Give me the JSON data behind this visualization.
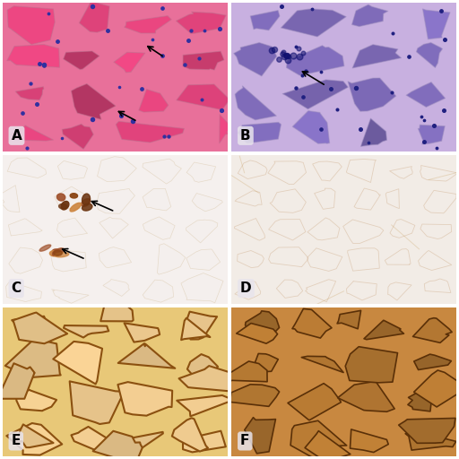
{
  "figsize": [
    5.12,
    5.12
  ],
  "dpi": 100,
  "background_color": "#ffffff",
  "border_color": "#ffffff",
  "panels": [
    {
      "label": "A",
      "row": 0,
      "col": 0,
      "type": "HE_pink"
    },
    {
      "label": "B",
      "row": 0,
      "col": 1,
      "type": "HE_purple"
    },
    {
      "label": "C",
      "row": 1,
      "col": 0,
      "type": "MAC_stain"
    },
    {
      "label": "D",
      "row": 1,
      "col": 1,
      "type": "MAC_dim"
    },
    {
      "label": "E",
      "row": 2,
      "col": 0,
      "type": "MHC_sarco"
    },
    {
      "label": "F",
      "row": 2,
      "col": 1,
      "type": "MHC_diffuse"
    }
  ],
  "label_box_color": "#e8e4ec",
  "label_font_size": 11,
  "arrow_color": "#000000"
}
